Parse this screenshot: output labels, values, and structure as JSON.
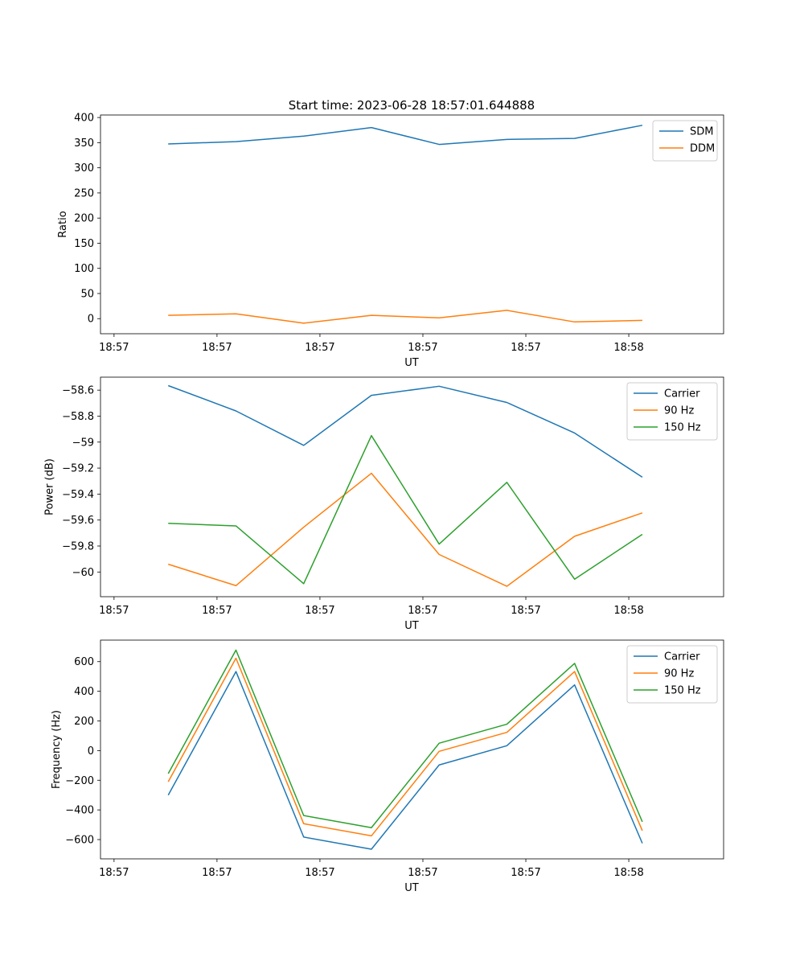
{
  "figure": {
    "title": "Start time: 2023-06-28 18:57:01.644888"
  },
  "chart_data": [
    {
      "type": "line",
      "xlabel": "UT",
      "ylabel": "Ratio",
      "x": [
        1,
        2,
        3,
        4,
        5,
        6,
        7,
        8
      ],
      "x_ticks": [
        {
          "x": 0.2,
          "label": "18:57"
        },
        {
          "x": 1.72,
          "label": "18:57"
        },
        {
          "x": 3.24,
          "label": "18:57"
        },
        {
          "x": 4.76,
          "label": "18:57"
        },
        {
          "x": 6.28,
          "label": "18:57"
        },
        {
          "x": 7.8,
          "label": "18:58"
        }
      ],
      "xlim": [
        0,
        9.2
      ],
      "ylim": [
        -30,
        405
      ],
      "yticks": [
        0,
        50,
        100,
        150,
        200,
        250,
        300,
        350,
        400
      ],
      "legend": "top-right",
      "grid": false,
      "series": [
        {
          "name": "SDM",
          "color": "#1f77b4",
          "values": [
            347.5,
            352,
            363,
            380,
            346.5,
            356.5,
            358.5,
            384.5
          ]
        },
        {
          "name": "DDM",
          "color": "#ff7f0e",
          "values": [
            6.5,
            9.5,
            -9,
            6.5,
            1.5,
            16.5,
            -6.5,
            -3.5
          ]
        }
      ]
    },
    {
      "type": "line",
      "xlabel": "UT",
      "ylabel": "Power (dB)",
      "x": [
        1,
        2,
        3,
        4,
        5,
        6,
        7,
        8
      ],
      "x_ticks": [
        {
          "x": 0.2,
          "label": "18:57"
        },
        {
          "x": 1.72,
          "label": "18:57"
        },
        {
          "x": 3.24,
          "label": "18:57"
        },
        {
          "x": 4.76,
          "label": "18:57"
        },
        {
          "x": 6.28,
          "label": "18:57"
        },
        {
          "x": 7.8,
          "label": "18:58"
        }
      ],
      "xlim": [
        0,
        9.2
      ],
      "ylim": [
        -60.19,
        -58.5
      ],
      "yticks": [
        -60.0,
        -59.8,
        -59.6,
        -59.4,
        -59.2,
        -59.0,
        -58.8,
        -58.6
      ],
      "legend": "top-right",
      "grid": false,
      "series": [
        {
          "name": "Carrier",
          "color": "#1f77b4",
          "values": [
            -58.565,
            -58.76,
            -59.025,
            -58.64,
            -58.57,
            -58.695,
            -58.93,
            -59.27
          ]
        },
        {
          "name": "90 Hz",
          "color": "#ff7f0e",
          "values": [
            -59.94,
            -60.105,
            -59.655,
            -59.24,
            -59.865,
            -60.11,
            -59.725,
            -59.545
          ]
        },
        {
          "name": "150 Hz",
          "color": "#2ca02c",
          "values": [
            -59.625,
            -59.645,
            -60.09,
            -58.95,
            -59.785,
            -59.31,
            -60.055,
            -59.71
          ]
        }
      ]
    },
    {
      "type": "line",
      "xlabel": "UT",
      "ylabel": "Frequency (Hz)",
      "x": [
        1,
        2,
        3,
        4,
        5,
        6,
        7,
        8
      ],
      "x_ticks": [
        {
          "x": 0.2,
          "label": "18:57"
        },
        {
          "x": 1.72,
          "label": "18:57"
        },
        {
          "x": 3.24,
          "label": "18:57"
        },
        {
          "x": 4.76,
          "label": "18:57"
        },
        {
          "x": 6.28,
          "label": "18:57"
        },
        {
          "x": 7.8,
          "label": "18:58"
        }
      ],
      "xlim": [
        0,
        9.2
      ],
      "ylim": [
        -730,
        745
      ],
      "yticks": [
        -600,
        -400,
        -200,
        0,
        200,
        400,
        600
      ],
      "legend": "top-right",
      "grid": false,
      "series": [
        {
          "name": "Carrier",
          "color": "#1f77b4",
          "values": [
            -300,
            533,
            -583,
            -665,
            -97,
            33,
            443,
            -625
          ]
        },
        {
          "name": "90 Hz",
          "color": "#ff7f0e",
          "values": [
            -210,
            623,
            -493,
            -575,
            -5,
            123,
            533,
            -540
          ]
        },
        {
          "name": "150 Hz",
          "color": "#2ca02c",
          "values": [
            -155,
            678,
            -438,
            -520,
            50,
            178,
            588,
            -480
          ]
        }
      ]
    }
  ]
}
